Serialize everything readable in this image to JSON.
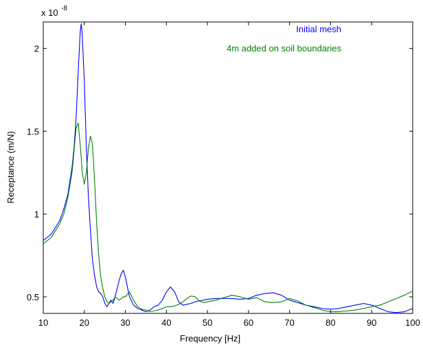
{
  "chart_data": {
    "type": "line",
    "xlabel": "Frequency [Hz]",
    "ylabel": "Receptance (m/N)",
    "y_multiplier": "x 10",
    "y_exponent": "-8",
    "x": [
      10,
      12,
      14,
      15,
      16,
      17,
      17.5,
      18,
      18.5,
      19,
      19.25,
      19.5,
      20,
      20.5,
      21,
      21.5,
      22,
      22.5,
      23,
      23.5,
      24,
      24.5,
      25,
      25.5,
      26,
      26.5,
      27,
      27.5,
      28,
      28.5,
      29,
      29.5,
      30,
      31,
      32,
      33,
      34,
      35,
      36,
      37,
      38,
      39,
      40,
      41,
      42,
      43,
      44,
      45,
      46,
      47,
      48,
      49,
      50,
      52,
      54,
      56,
      58,
      60,
      62,
      64,
      66,
      68,
      70,
      72,
      74,
      76,
      78,
      80,
      82,
      84,
      86,
      88,
      90,
      92,
      94,
      96,
      98,
      100
    ],
    "series": [
      {
        "name": "Initial mesh",
        "color": "#0000ff",
        "values": [
          0.84,
          0.88,
          0.96,
          1.03,
          1.12,
          1.28,
          1.4,
          1.58,
          1.85,
          2.1,
          2.15,
          2.08,
          1.8,
          1.4,
          1.1,
          0.9,
          0.72,
          0.63,
          0.56,
          0.53,
          0.52,
          0.5,
          0.46,
          0.44,
          0.46,
          0.48,
          0.46,
          0.5,
          0.55,
          0.6,
          0.64,
          0.66,
          0.62,
          0.5,
          0.45,
          0.43,
          0.42,
          0.41,
          0.42,
          0.44,
          0.45,
          0.48,
          0.53,
          0.56,
          0.53,
          0.47,
          0.45,
          0.455,
          0.46,
          0.47,
          0.475,
          0.48,
          0.485,
          0.49,
          0.49,
          0.49,
          0.485,
          0.49,
          0.51,
          0.52,
          0.525,
          0.51,
          0.48,
          0.465,
          0.45,
          0.44,
          0.43,
          0.425,
          0.43,
          0.44,
          0.45,
          0.46,
          0.45,
          0.43,
          0.41,
          0.405,
          0.41,
          0.43
        ]
      },
      {
        "name": "4m added on soil boundaries",
        "color": "#008000",
        "values": [
          0.82,
          0.86,
          0.94,
          1.0,
          1.1,
          1.25,
          1.38,
          1.52,
          1.55,
          1.42,
          1.34,
          1.25,
          1.18,
          1.25,
          1.4,
          1.47,
          1.42,
          1.2,
          0.95,
          0.75,
          0.62,
          0.55,
          0.5,
          0.47,
          0.46,
          0.47,
          0.48,
          0.5,
          0.49,
          0.48,
          0.49,
          0.5,
          0.5,
          0.53,
          0.48,
          0.44,
          0.425,
          0.42,
          0.41,
          0.415,
          0.42,
          0.43,
          0.44,
          0.44,
          0.445,
          0.455,
          0.47,
          0.49,
          0.505,
          0.5,
          0.475,
          0.465,
          0.47,
          0.48,
          0.495,
          0.51,
          0.5,
          0.485,
          0.495,
          0.47,
          0.465,
          0.47,
          0.49,
          0.475,
          0.45,
          0.435,
          0.42,
          0.41,
          0.41,
          0.415,
          0.42,
          0.43,
          0.44,
          0.45,
          0.47,
          0.49,
          0.51,
          0.535
        ]
      }
    ],
    "xlim": [
      10,
      100
    ],
    "xticks": [
      10,
      20,
      30,
      40,
      50,
      60,
      70,
      80,
      90,
      100
    ],
    "ylim": [
      0.4,
      2.16
    ],
    "yticks": [
      0.5,
      1,
      1.5,
      2
    ]
  }
}
